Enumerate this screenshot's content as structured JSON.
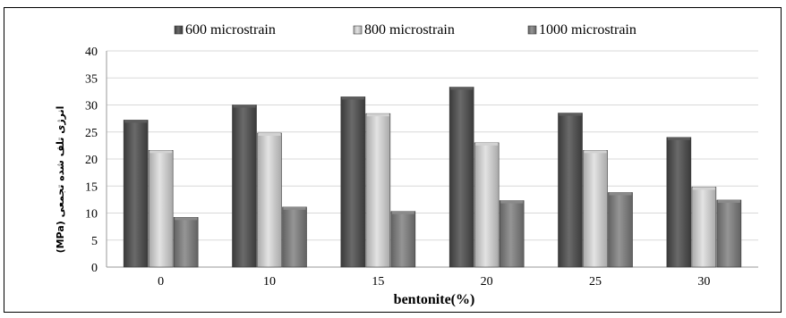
{
  "chart_data": {
    "type": "bar",
    "title": "",
    "xlabel": "bentonite(%)",
    "ylabel": "(MPa) انرژی تلف شده تجمعی",
    "categories": [
      "0",
      "10",
      "15",
      "20",
      "25",
      "30"
    ],
    "series": [
      {
        "name": "600 microstrain",
        "values": [
          27.2,
          30.0,
          31.5,
          33.3,
          28.5,
          24.0
        ]
      },
      {
        "name": "800 microstrain",
        "values": [
          21.6,
          24.8,
          28.4,
          23.0,
          21.6,
          14.8
        ]
      },
      {
        "name": "1000 microstrain",
        "values": [
          9.2,
          11.1,
          10.3,
          12.3,
          13.8,
          12.4
        ]
      }
    ],
    "ylim": [
      0,
      40
    ],
    "yticks": [
      0,
      5,
      10,
      15,
      20,
      25,
      30,
      35,
      40
    ],
    "grid": true,
    "legend": "top"
  },
  "colors": {
    "series": [
      "#4f4f4f",
      "#bdbdbd",
      "#7b7b7b"
    ],
    "grid": "#d9d9d9",
    "text": "#000000"
  }
}
